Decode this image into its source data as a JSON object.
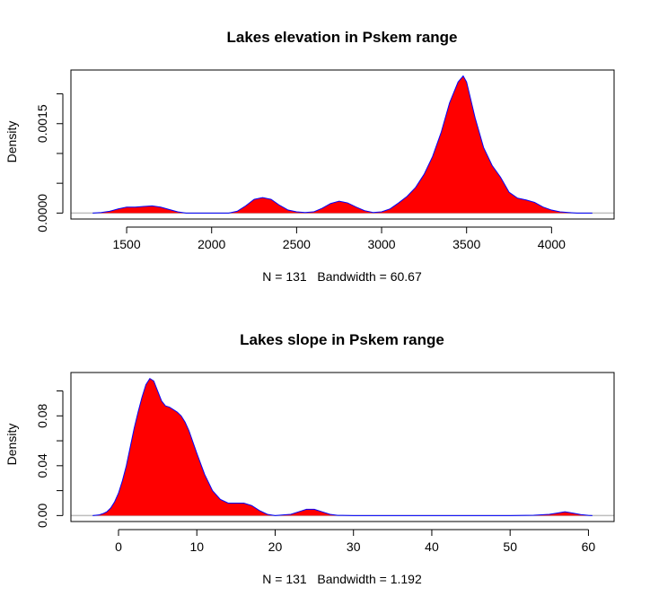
{
  "colors": {
    "fill": "#ff0000",
    "line": "#0000ff",
    "baseline": "#bebebe",
    "axis": "#000000"
  },
  "chart_data": [
    {
      "type": "area",
      "title": "Lakes elevation in Pskem range",
      "ylabel": "Density",
      "xlabel": "N = 131   Bandwidth = 60.67",
      "xlim": [
        1300,
        4240
      ],
      "ylim": [
        0,
        0.0023
      ],
      "x_ticks": [
        1500,
        2000,
        2500,
        3000,
        3500,
        4000
      ],
      "y_ticks": [
        0.0,
        0.0015
      ],
      "y_tick_labels": [
        "0.0000",
        "0.0015"
      ],
      "y_minor_ticks": [
        0.0005,
        0.001,
        0.002
      ],
      "grid": false,
      "series": [
        {
          "x": [
            1300,
            1350,
            1400,
            1450,
            1500,
            1550,
            1600,
            1650,
            1700,
            1750,
            1800,
            1850,
            1900,
            1950,
            2000,
            2050,
            2100,
            2150,
            2200,
            2250,
            2300,
            2350,
            2400,
            2450,
            2500,
            2550,
            2600,
            2650,
            2700,
            2750,
            2800,
            2850,
            2900,
            2950,
            3000,
            3050,
            3100,
            3150,
            3200,
            3250,
            3300,
            3350,
            3400,
            3450,
            3480,
            3500,
            3550,
            3600,
            3650,
            3700,
            3750,
            3800,
            3850,
            3900,
            3950,
            4000,
            4050,
            4100,
            4150,
            4200,
            4240
          ],
          "y": [
            0.0,
            1e-05,
            3e-05,
            7e-05,
            0.0001,
            0.0001,
            0.00011,
            0.00012,
            0.0001,
            6e-05,
            2e-05,
            0.0,
            0.0,
            0.0,
            0.0,
            0.0,
            0.0,
            3e-05,
            0.00012,
            0.00023,
            0.00026,
            0.00023,
            0.00013,
            5e-05,
            2e-05,
            1e-05,
            2e-05,
            8e-05,
            0.00016,
            0.0002,
            0.00017,
            0.0001,
            4e-05,
            1e-05,
            2e-05,
            7e-05,
            0.00017,
            0.00028,
            0.00043,
            0.00065,
            0.00095,
            0.00135,
            0.00185,
            0.0022,
            0.0023,
            0.0022,
            0.0016,
            0.0011,
            0.0008,
            0.0006,
            0.00035,
            0.00025,
            0.00022,
            0.00018,
            0.0001,
            5e-05,
            2e-05,
            1e-05,
            0.0,
            0.0,
            0.0
          ]
        }
      ]
    },
    {
      "type": "area",
      "title": "Lakes slope in Pskem range",
      "ylabel": "Density",
      "xlabel": "N = 131   Bandwidth = 1.192",
      "xlim": [
        -3.3,
        60.5
      ],
      "ylim": [
        0,
        0.11
      ],
      "x_ticks": [
        0,
        10,
        20,
        30,
        40,
        50,
        60
      ],
      "y_ticks": [
        0.0,
        0.04,
        0.08
      ],
      "y_tick_labels": [
        "0.00",
        "0.04",
        "0.08"
      ],
      "y_minor_ticks": [
        0.02,
        0.06,
        0.1
      ],
      "grid": false,
      "series": [
        {
          "x": [
            -3.3,
            -2.5,
            -2,
            -1.5,
            -1,
            -0.5,
            0,
            0.5,
            1,
            1.5,
            2,
            2.5,
            3,
            3.5,
            4,
            4.5,
            5,
            5.5,
            6,
            6.5,
            7,
            7.5,
            8,
            8.5,
            9,
            10,
            11,
            12,
            13,
            14,
            15,
            16,
            17,
            18,
            19,
            20,
            21,
            22,
            23,
            24,
            25,
            26,
            27,
            28,
            30,
            40,
            50,
            53,
            55,
            56,
            57,
            58,
            59,
            60,
            60.5
          ],
          "y": [
            0.0,
            0.0005,
            0.0015,
            0.003,
            0.006,
            0.011,
            0.018,
            0.028,
            0.04,
            0.055,
            0.07,
            0.083,
            0.095,
            0.105,
            0.11,
            0.108,
            0.1,
            0.092,
            0.088,
            0.087,
            0.085,
            0.083,
            0.08,
            0.075,
            0.068,
            0.05,
            0.033,
            0.02,
            0.013,
            0.01,
            0.01,
            0.01,
            0.008,
            0.004,
            0.001,
            0.0,
            0.0005,
            0.001,
            0.003,
            0.005,
            0.005,
            0.003,
            0.001,
            0.0002,
            0.0,
            0.0,
            0.0,
            0.0003,
            0.001,
            0.002,
            0.003,
            0.002,
            0.0008,
            0.0002,
            0.0
          ]
        }
      ]
    }
  ]
}
